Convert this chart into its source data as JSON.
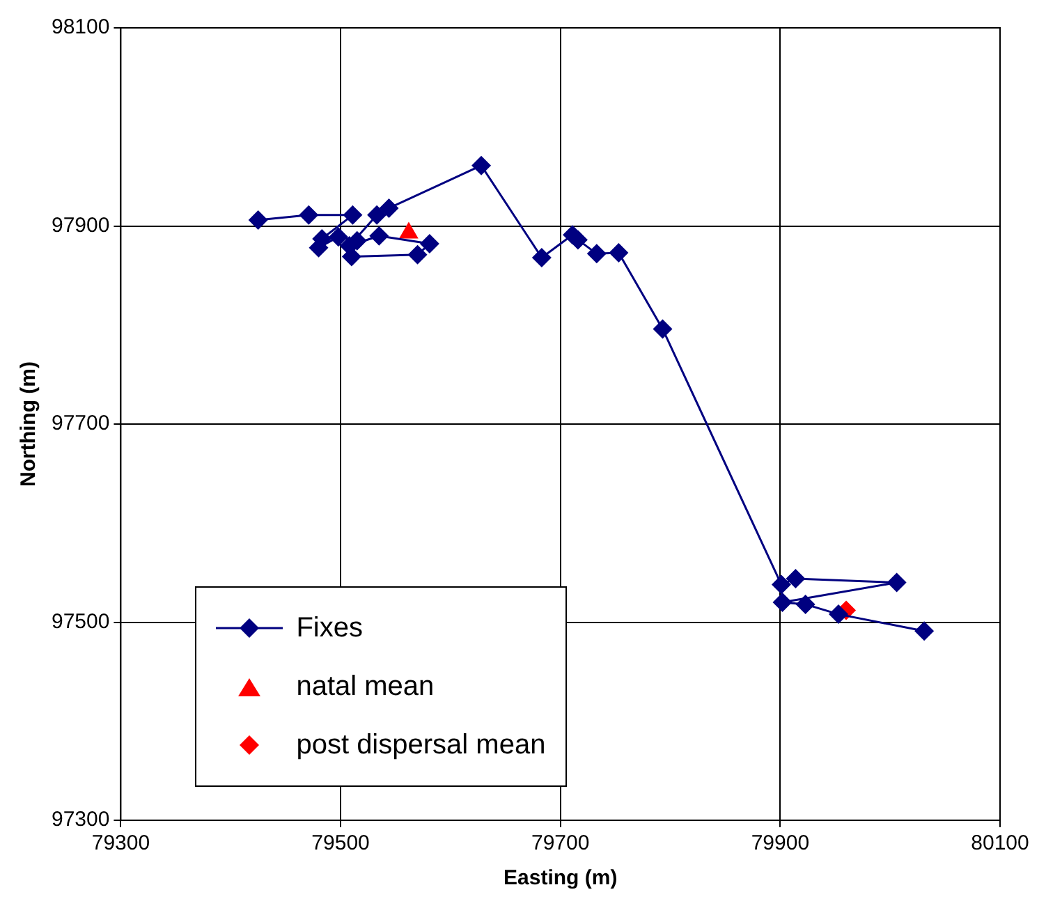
{
  "chart_data": {
    "type": "line",
    "xlabel": "Easting (m)",
    "ylabel": "Northing (m)",
    "xlim": [
      79300,
      80100
    ],
    "xticks": [
      79300,
      79500,
      79700,
      79900,
      80100
    ],
    "ylim": [
      97300,
      98100
    ],
    "yticks": [
      97300,
      97500,
      97700,
      97900,
      98100
    ],
    "grid": true,
    "legend": "bottom left",
    "series": [
      {
        "name": "Fixes",
        "type": "line",
        "color": "#000080",
        "marker": "diamond",
        "x": [
          79425,
          79471,
          79511,
          79483,
          79480,
          79498,
          79515,
          79510,
          79570,
          79581,
          79535,
          79508,
          79533,
          79544,
          79628,
          79683,
          79711,
          79716,
          79733,
          79753,
          79793,
          79901,
          79914,
          80006,
          79902,
          79923,
          79953,
          80031
        ],
        "values": [
          97906,
          97911,
          97911,
          97887,
          97878,
          97889,
          97885,
          97869,
          97871,
          97882,
          97890,
          97880,
          97911,
          97918,
          97961,
          97868,
          97891,
          97886,
          97872,
          97873,
          97796,
          97538,
          97544,
          97540,
          97520,
          97518,
          97508,
          97491
        ]
      },
      {
        "name": "natal mean",
        "type": "scatter",
        "color": "#ff0000",
        "marker": "triangle",
        "x": [
          79562
        ],
        "values": [
          97893
        ]
      },
      {
        "name": "post dispersal mean",
        "type": "scatter",
        "color": "#ff0000",
        "marker": "diamond",
        "x": [
          79960
        ],
        "values": [
          97512
        ]
      }
    ]
  }
}
